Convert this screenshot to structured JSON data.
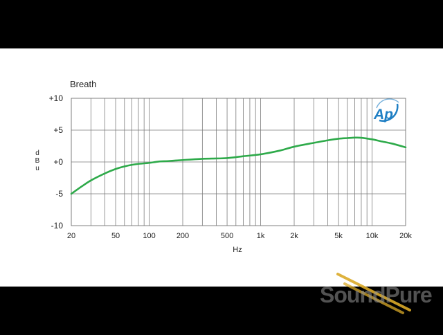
{
  "chart_data": {
    "type": "line",
    "title": "Breath",
    "xlabel": "Hz",
    "ylabel": "dBu",
    "xscale": "log",
    "xlim": [
      20,
      20000
    ],
    "ylim": [
      -10,
      10
    ],
    "grid": true,
    "x_ticks": [
      {
        "value": 20,
        "label": "20"
      },
      {
        "value": 50,
        "label": "50"
      },
      {
        "value": 100,
        "label": "100"
      },
      {
        "value": 200,
        "label": "200"
      },
      {
        "value": 500,
        "label": "500"
      },
      {
        "value": 1000,
        "label": "1k"
      },
      {
        "value": 2000,
        "label": "2k"
      },
      {
        "value": 5000,
        "label": "5k"
      },
      {
        "value": 10000,
        "label": "10k"
      },
      {
        "value": 20000,
        "label": "20k"
      }
    ],
    "y_ticks": [
      {
        "value": 10,
        "label": "+10"
      },
      {
        "value": 5,
        "label": "+5"
      },
      {
        "value": 0,
        "label": "+0"
      },
      {
        "value": -5,
        "label": "-5"
      },
      {
        "value": -10,
        "label": "-10"
      }
    ],
    "series": [
      {
        "color": "#2eaa4a",
        "x": [
          20,
          25,
          30,
          40,
          50,
          60,
          70,
          80,
          100,
          120,
          150,
          200,
          300,
          400,
          500,
          700,
          1000,
          1500,
          2000,
          3000,
          4000,
          5000,
          6000,
          7000,
          8000,
          10000,
          12000,
          15000,
          20000
        ],
        "y": [
          -5.0,
          -3.8,
          -2.9,
          -1.8,
          -1.1,
          -0.7,
          -0.45,
          -0.3,
          -0.15,
          0.05,
          0.15,
          0.3,
          0.5,
          0.55,
          0.6,
          0.9,
          1.2,
          1.8,
          2.4,
          3.0,
          3.4,
          3.65,
          3.75,
          3.82,
          3.8,
          3.55,
          3.25,
          2.9,
          2.3
        ]
      }
    ]
  },
  "logo": {
    "text": "Ap",
    "color": "#1f7fc4"
  },
  "watermark": {
    "text": "SoundPure"
  }
}
